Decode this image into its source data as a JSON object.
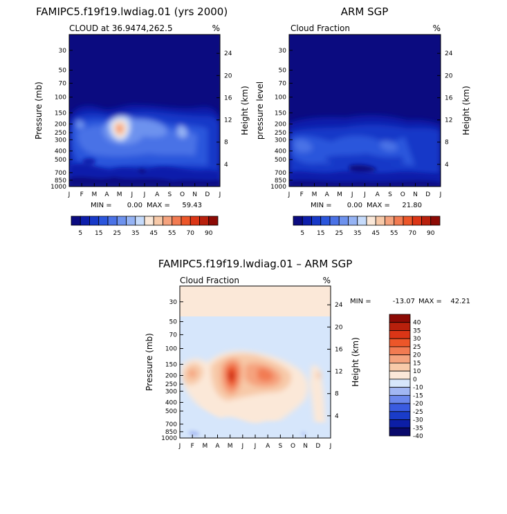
{
  "colors": {
    "ramp_abs": [
      "#0b0b80",
      "#0d1eab",
      "#1739c8",
      "#2b56dc",
      "#4a72e6",
      "#6d92ee",
      "#95b3f4",
      "#c6dbfb",
      "#fbe8d8",
      "#f7c9a8",
      "#f5a37e",
      "#f27b52",
      "#ec5629",
      "#db3516",
      "#b8200c",
      "#8c0a05"
    ],
    "ramp_diff": [
      "#09096b",
      "#0c1ea6",
      "#1a3cc9",
      "#3a5be0",
      "#6b87ec",
      "#a1b6f3",
      "#d6e6fb",
      "#fbe8d8",
      "#f8caa9",
      "#f5a37e",
      "#f27b52",
      "#ec5629",
      "#db3516",
      "#b8200c",
      "#8c0a05"
    ]
  },
  "panels": [
    {
      "id": "model",
      "title": "FAMIPC5.f19f19.lwdiag.01 (yrs 2000)",
      "subtitle_left": "CLOUD at 36.9474,262.5",
      "subtitle_right": "%",
      "ylabel_left": "Pressure (mb)",
      "ylabel_right": "Height (km)",
      "min_label": "MIN =",
      "min_value": "0.00",
      "max_label": "MAX =",
      "max_value": "59.43"
    },
    {
      "id": "obs",
      "title": "ARM SGP",
      "subtitle_left": "Cloud Fraction",
      "subtitle_right": "%",
      "ylabel_left": "pressure level",
      "ylabel_right": "Height (km)",
      "min_label": "MIN =",
      "min_value": "0.00",
      "max_label": "MAX =",
      "max_value": "21.80"
    },
    {
      "id": "diff",
      "title": "FAMIPC5.f19f19.lwdiag.01 – ARM SGP",
      "subtitle_left": "Cloud Fraction",
      "subtitle_right": "%",
      "ylabel_left": "Pressure (mb)",
      "ylabel_right": "Height (km)",
      "min_label": "MIN =",
      "min_value": "-13.07",
      "max_label": "MAX =",
      "max_value": "42.21"
    }
  ],
  "colorbar_abs_labels": [
    "5",
    "15",
    "25",
    "35",
    "45",
    "55",
    "70",
    "90"
  ],
  "colorbar_diff_labels": [
    "40",
    "35",
    "30",
    "25",
    "20",
    "15",
    "10",
    "0",
    "-10",
    "-15",
    "-20",
    "-25",
    "-30",
    "-35",
    "-40"
  ],
  "chart_data": [
    {
      "type": "heatmap",
      "title": "FAMIPC5.f19f19.lwdiag.01 (yrs 2000)",
      "subtitle": "CLOUD at 36.9474,262.5",
      "units": "%",
      "xlabel": "",
      "ylabel": "Pressure (mb)",
      "ylabel_right": "Height (km)",
      "x_ticks": [
        "J",
        "F",
        "M",
        "A",
        "M",
        "J",
        "J",
        "A",
        "S",
        "O",
        "N",
        "D",
        "J"
      ],
      "y_ticks": [
        30,
        50,
        70,
        100,
        150,
        200,
        250,
        300,
        400,
        500,
        700,
        850,
        1000
      ],
      "y_ticks_right": [
        24,
        20,
        16,
        12,
        8,
        4
      ],
      "ylim": [
        1000,
        20
      ],
      "levels": [
        5,
        10,
        15,
        20,
        25,
        30,
        35,
        40,
        45,
        50,
        55,
        60,
        70,
        80,
        90
      ],
      "min": 0.0,
      "max": 59.43,
      "peak": {
        "month": "May",
        "pressure": 250,
        "value": 59.43
      }
    },
    {
      "type": "heatmap",
      "title": "ARM SGP",
      "subtitle": "Cloud Fraction",
      "units": "%",
      "xlabel": "",
      "ylabel": "pressure level",
      "ylabel_right": "Height (km)",
      "x_ticks": [
        "J",
        "F",
        "M",
        "A",
        "M",
        "J",
        "J",
        "A",
        "S",
        "O",
        "N",
        "D",
        "J"
      ],
      "y_ticks": [
        30,
        50,
        70,
        100,
        150,
        200,
        250,
        300,
        400,
        500,
        700,
        850,
        1000
      ],
      "y_ticks_right": [
        24,
        20,
        16,
        12,
        8,
        4
      ],
      "ylim": [
        1000,
        20
      ],
      "levels": [
        5,
        10,
        15,
        20,
        25,
        30,
        35,
        40,
        45,
        50,
        55,
        60,
        70,
        80,
        90
      ],
      "min": 0.0,
      "max": 21.8
    },
    {
      "type": "heatmap",
      "title": "FAMIPC5.f19f19.lwdiag.01 – ARM SGP",
      "subtitle": "Cloud Fraction",
      "units": "%",
      "xlabel": "",
      "ylabel": "Pressure (mb)",
      "ylabel_right": "Height (km)",
      "x_ticks": [
        "J",
        "F",
        "M",
        "A",
        "M",
        "J",
        "J",
        "A",
        "S",
        "O",
        "N",
        "D",
        "J"
      ],
      "y_ticks": [
        30,
        50,
        70,
        100,
        150,
        200,
        250,
        300,
        400,
        500,
        700,
        850,
        1000
      ],
      "y_ticks_right": [
        24,
        20,
        16,
        12,
        8,
        4
      ],
      "ylim": [
        1000,
        20
      ],
      "levels": [
        -40,
        -35,
        -30,
        -25,
        -20,
        -15,
        -10,
        0,
        10,
        15,
        20,
        25,
        30,
        35,
        40
      ],
      "min": -13.07,
      "max": 42.21,
      "peak": {
        "month": "May",
        "pressure": 250,
        "value": 42.21
      }
    }
  ]
}
